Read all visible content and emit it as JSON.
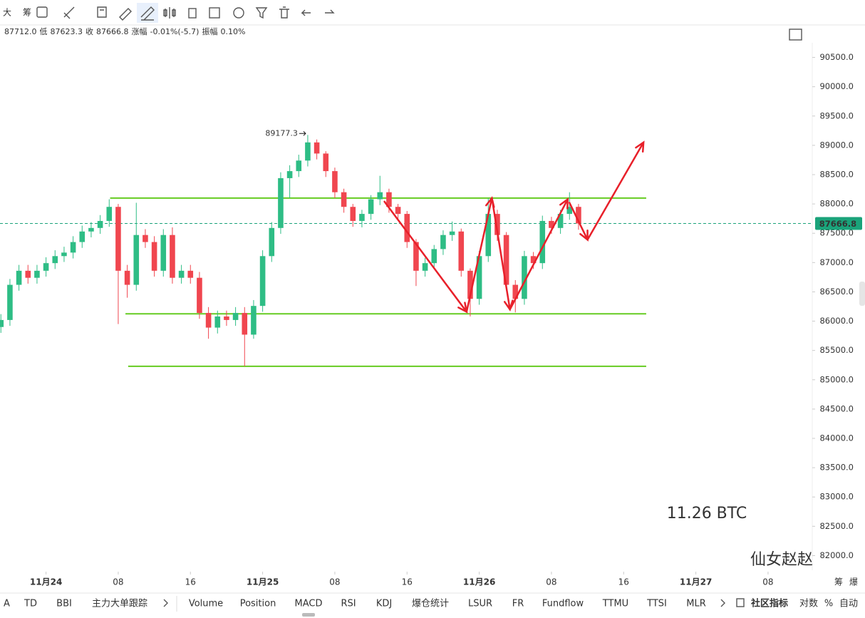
{
  "toolbar": [
    "大",
    "筹"
  ],
  "info_bar": [
    "87712.0",
    "低",
    "87623.3",
    "收",
    "87666.8",
    "涨幅",
    "-0.01%(-5.7)",
    "振幅",
    "0.10%"
  ],
  "side_labels": [
    "筹",
    "爆"
  ],
  "indicator_tabs": [
    "A",
    "TD",
    "BBI",
    "主力大单跟踪",
    "Volume",
    "Position",
    "MACD",
    "RSI",
    "KDJ",
    "爆仓统计",
    "LSUR",
    "FR",
    "Fundflow",
    "TTMU",
    "TTSI",
    "MLR"
  ],
  "active_tabs": [
    "MACD",
    "KDJ"
  ],
  "footer_right": [
    "社区指标",
    "对数",
    "%",
    "自动"
  ],
  "chart_data": {
    "type": "candlestick",
    "annotation": "11.26 BTC",
    "author": "仙女赵赵",
    "up_color": "#2ebd85",
    "down_color": "#f0464f",
    "x": [
      -5,
      -4,
      -3,
      -2,
      -1,
      0,
      1,
      2,
      3,
      4,
      5,
      6,
      7,
      8,
      9,
      10,
      11,
      12,
      13,
      14,
      15,
      16,
      17,
      18,
      19,
      20,
      21,
      22,
      23,
      24,
      25,
      26,
      27,
      28,
      29,
      30,
      31,
      32,
      33,
      34,
      35,
      36,
      37,
      38,
      39,
      40,
      41,
      42,
      43,
      44,
      45,
      46,
      47,
      48,
      49,
      50,
      51,
      52,
      53,
      54,
      55,
      56,
      57,
      58,
      59
    ],
    "open": [
      85900,
      86020,
      86620,
      86860,
      86740,
      86860,
      86990,
      87110,
      87170,
      87350,
      87530,
      87590,
      87710,
      87950,
      86860,
      86620,
      87470,
      87350,
      86860,
      87470,
      86740,
      86860,
      86740,
      86140,
      85890,
      86080,
      86020,
      86140,
      85770,
      86260,
      87110,
      87590,
      88440,
      88560,
      88740,
      89050,
      88860,
      88560,
      88200,
      87950,
      87710,
      87830,
      88080,
      88200,
      87950,
      87830,
      87350,
      86860,
      86990,
      87230,
      87470,
      87530,
      86860,
      86380,
      87110,
      87830,
      87470,
      86620,
      86380,
      87110,
      86990,
      87710,
      87590,
      87830,
      87950
    ],
    "high": [
      86120,
      86720,
      86960,
      86960,
      86960,
      87090,
      87210,
      87270,
      87450,
      87630,
      87690,
      87810,
      88080,
      88000,
      86960,
      88020,
      87570,
      87450,
      87570,
      87600,
      86960,
      86960,
      86840,
      86240,
      86180,
      86180,
      86240,
      86240,
      86360,
      87210,
      87690,
      88540,
      88660,
      88840,
      89177.3,
      89100,
      88900,
      88620,
      88260,
      88000,
      87900,
      88150,
      88480,
      88260,
      88000,
      87880,
      87400,
      87080,
      87300,
      87550,
      87700,
      87580,
      86900,
      87200,
      88100,
      87900,
      87520,
      86700,
      87200,
      87180,
      87800,
      87780,
      87900,
      88200,
      88000
    ],
    "low": [
      85800,
      85920,
      86520,
      86640,
      86640,
      86760,
      86890,
      87010,
      87070,
      87250,
      87430,
      87490,
      87610,
      85950,
      86400,
      86520,
      87250,
      86760,
      86760,
      86640,
      86640,
      86640,
      86040,
      85700,
      85790,
      85920,
      85920,
      85230,
      85700,
      86160,
      87010,
      87490,
      88100,
      88460,
      88640,
      88760,
      88460,
      88100,
      87850,
      87610,
      87600,
      87730,
      87980,
      87850,
      87730,
      87250,
      86600,
      86760,
      86890,
      87130,
      87370,
      86760,
      86080,
      86280,
      87010,
      87370,
      86520,
      86150,
      86280,
      86890,
      86890,
      87490,
      87490,
      87730,
      87560
    ],
    "close": [
      86020,
      86620,
      86860,
      86740,
      86860,
      86990,
      87110,
      87170,
      87350,
      87530,
      87590,
      87710,
      87950,
      86860,
      86620,
      87470,
      87350,
      86860,
      87470,
      86740,
      86860,
      86740,
      86140,
      85890,
      86080,
      86020,
      86140,
      85770,
      86260,
      87110,
      87590,
      88440,
      88560,
      88740,
      89050,
      88860,
      88560,
      88200,
      87950,
      87710,
      87830,
      88080,
      88200,
      87950,
      87830,
      87350,
      86860,
      86990,
      87230,
      87470,
      87530,
      86860,
      86380,
      87110,
      87830,
      87470,
      86620,
      86380,
      87110,
      86990,
      87710,
      87590,
      87830,
      87950,
      87666.8
    ],
    "high_marker": 89177.3,
    "last_price": 87666.8,
    "level_color": "#66cc22",
    "levels": [
      {
        "value": 88100,
        "x": [
          7.1,
          66.5
        ]
      },
      {
        "value": 86125,
        "x": [
          8.8,
          66.5
        ]
      },
      {
        "value": 85230,
        "x": [
          9.1,
          66.5
        ]
      }
    ],
    "arrow_color": "#e8202a",
    "arrows": [
      {
        "x": [
          37.5,
          46.6
        ],
        "y": [
          88040,
          86160
        ]
      },
      {
        "x": [
          46.6,
          49.4
        ],
        "y": [
          86160,
          88100
        ]
      },
      {
        "x": [
          49.4,
          51.4
        ],
        "y": [
          88100,
          86200
        ]
      },
      {
        "x": [
          51.4,
          57.8
        ],
        "y": [
          86200,
          88080
        ]
      },
      {
        "x": [
          58.0,
          60.0
        ],
        "y": [
          88020,
          87390
        ]
      },
      {
        "x": [
          60.0,
          66.2
        ],
        "y": [
          87390,
          89050
        ]
      }
    ],
    "xlim": [
      -5.1,
      84.9
    ],
    "xticks": [
      {
        "value": 0,
        "label": "11月24"
      },
      {
        "value": 8,
        "label": "08"
      },
      16,
      {
        "value": 24,
        "label": "11月25"
      },
      {
        "value": 32,
        "label": "08"
      },
      {
        "value": 40,
        "label": "16"
      },
      {
        "value": 48,
        "label": "11月26"
      },
      {
        "value": 56,
        "label": "08"
      },
      {
        "value": 64,
        "label": "16"
      },
      {
        "value": 72,
        "label": "11月27"
      },
      {
        "value": 80,
        "label": "08"
      }
    ],
    "ylim": [
      81750,
      90750
    ],
    "yticks": [
      {
        "value": 82000,
        "label": "82000.0"
      },
      {
        "value": 82500,
        "label": "82500.0"
      },
      {
        "value": 83000,
        "label": "83000.0"
      },
      {
        "value": 83500,
        "label": "83500.0"
      },
      {
        "value": 84000,
        "label": "84000.0"
      },
      {
        "value": 84500,
        "label": "84500.0"
      },
      {
        "value": 85000,
        "label": "85000.0"
      },
      {
        "value": 85500,
        "label": "85500.0"
      },
      {
        "value": 86000,
        "label": "86000.0"
      },
      {
        "value": 86500,
        "label": "86500.0"
      },
      {
        "value": 87000,
        "label": "87000.0"
      },
      {
        "value": 87500,
        "label": "87500.0"
      },
      {
        "value": 88000,
        "label": "88000.0"
      },
      {
        "value": 88500,
        "label": "88500.0"
      },
      {
        "value": 89000,
        "label": "89000.0"
      },
      {
        "value": 89500,
        "label": "89500.0"
      },
      {
        "value": 90000,
        "label": "90000.0"
      },
      {
        "value": 90500,
        "label": "90500.0"
      }
    ],
    "grid": false
  }
}
